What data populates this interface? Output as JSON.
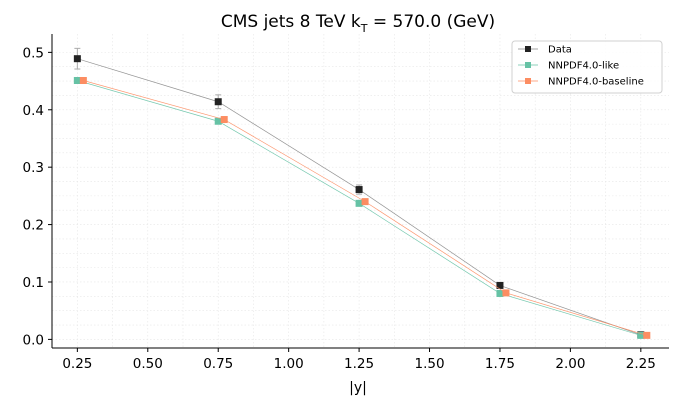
{
  "chart_data": {
    "type": "line",
    "title_main": "CMS jets 8 TeV k",
    "title_sub": "T",
    "title_rest": " = 570.0 (GeV)",
    "xlabel": "|y|",
    "ylabel": "",
    "xlim": [
      0.16,
      2.35
    ],
    "ylim": [
      -0.015,
      0.532
    ],
    "xticks": [
      0.25,
      0.5,
      0.75,
      1.0,
      1.25,
      1.5,
      1.75,
      2.0,
      2.25
    ],
    "xtick_labels": [
      "0.25",
      "0.50",
      "0.75",
      "1.00",
      "1.25",
      "1.50",
      "1.75",
      "2.00",
      "2.25"
    ],
    "yticks": [
      0.0,
      0.1,
      0.2,
      0.3,
      0.4,
      0.5
    ],
    "ytick_labels": [
      "0.0",
      "0.1",
      "0.2",
      "0.3",
      "0.4",
      "0.5"
    ],
    "grid": true,
    "legend_position": "top-right",
    "series": [
      {
        "name": "Data",
        "color": "#222222",
        "x": [
          0.25,
          0.75,
          1.25,
          1.75,
          2.25
        ],
        "values": [
          0.489,
          0.414,
          0.261,
          0.094,
          0.008
        ],
        "errors": [
          0.018,
          0.012,
          0.008,
          0.004,
          0.002
        ]
      },
      {
        "name": "NNPDF4.0-like",
        "color": "#66c2a5",
        "x": [
          0.25,
          0.75,
          1.25,
          1.75,
          2.25
        ],
        "values": [
          0.451,
          0.38,
          0.237,
          0.08,
          0.007
        ]
      },
      {
        "name": "NNPDF4.0-baseline",
        "color": "#fc8d62",
        "x": [
          0.25,
          0.75,
          1.25,
          1.75,
          2.25
        ],
        "values": [
          0.451,
          0.383,
          0.24,
          0.081,
          0.007
        ]
      }
    ]
  }
}
